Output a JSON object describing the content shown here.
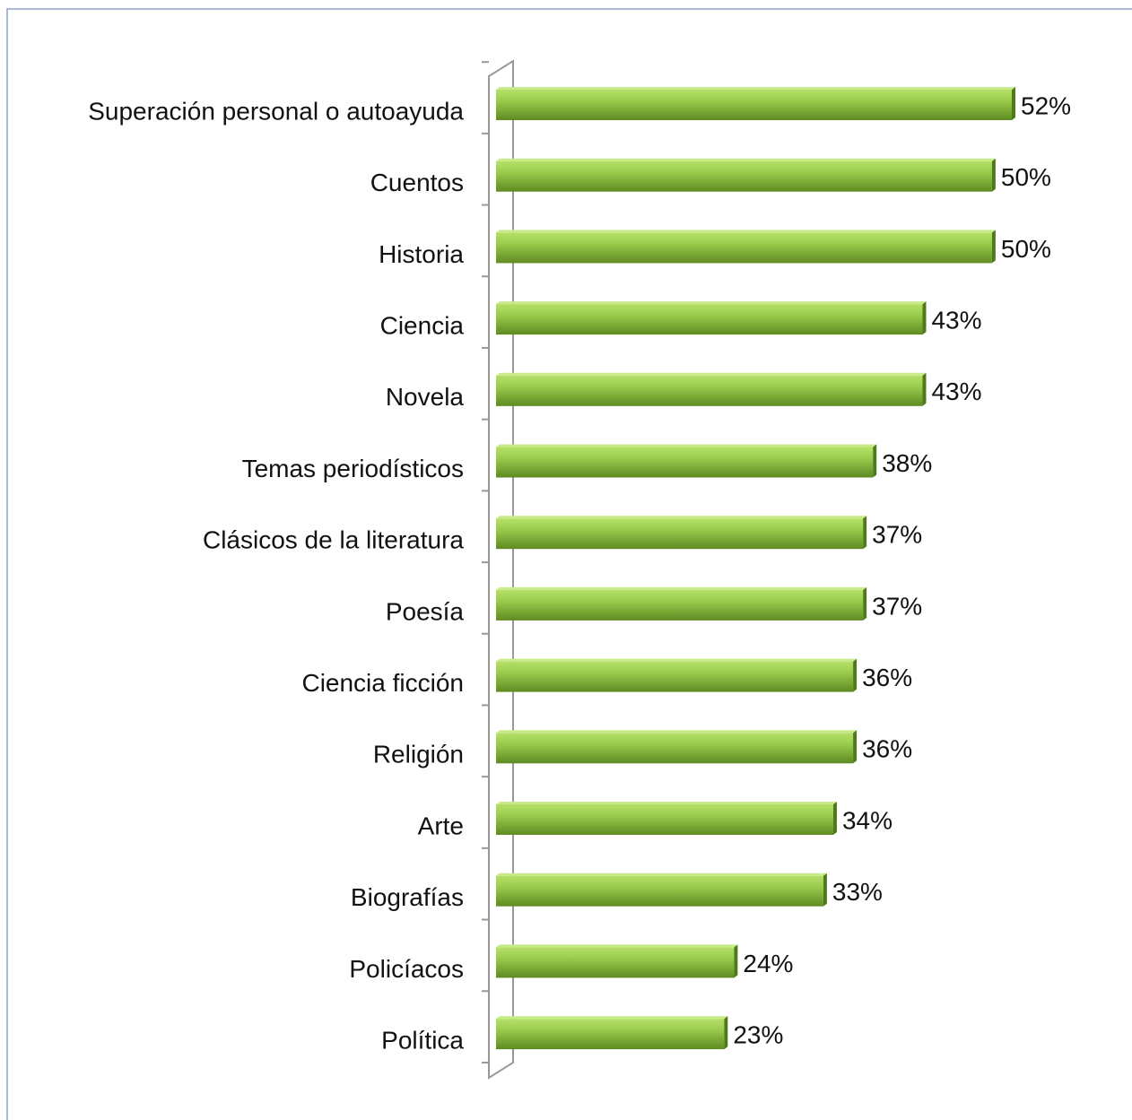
{
  "chart_data": {
    "type": "bar",
    "orientation": "horizontal",
    "categories": [
      "Superación personal o autoayuda",
      "Cuentos",
      "Historia",
      "Ciencia",
      "Novela",
      "Temas periodísticos",
      "Clásicos de la literatura",
      "Poesía",
      "Ciencia ficción",
      "Religión",
      "Arte",
      "Biografías",
      "Policíacos",
      "Política"
    ],
    "values": [
      52,
      50,
      50,
      43,
      43,
      38,
      37,
      37,
      36,
      36,
      34,
      33,
      24,
      23
    ],
    "value_labels": [
      "52%",
      "50%",
      "50%",
      "43%",
      "43%",
      "38%",
      "37%",
      "37%",
      "36%",
      "36%",
      "34%",
      "33%",
      "24%",
      "23%"
    ],
    "color": "#8cbf3f"
  }
}
